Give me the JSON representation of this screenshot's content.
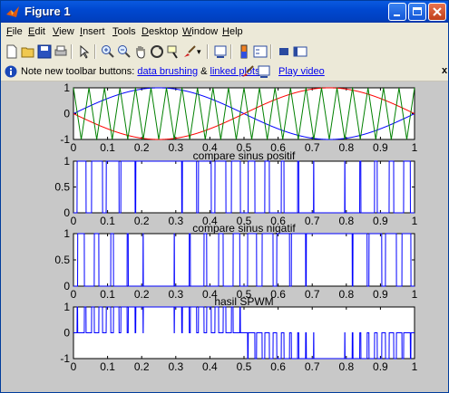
{
  "window": {
    "title": "Figure 1",
    "icon": "matlab-icon"
  },
  "menu": [
    "File",
    "Edit",
    "View",
    "Insert",
    "Tools",
    "Desktop",
    "Window",
    "Help"
  ],
  "toolbar_icons": [
    "new-figure-icon",
    "open-file-icon",
    "save-icon",
    "print-icon",
    "select-arrow-icon",
    "zoom-in-icon",
    "zoom-out-icon",
    "pan-hand-icon",
    "rotate-3d-icon",
    "data-cursor-icon",
    "brush-icon",
    "link-plot-icon",
    "colorbar-icon",
    "legend-icon",
    "hide-plot-tools-icon",
    "show-plot-tools-icon"
  ],
  "infobar": {
    "prefix": "Note new toolbar buttons: ",
    "link1": "data brushing",
    "mid": " & ",
    "link2": "linked plots",
    "video": "Play video",
    "close": "x"
  },
  "chart_data": [
    {
      "type": "line",
      "title": "",
      "xlim": [
        0,
        1
      ],
      "ylim": [
        -1,
        1
      ],
      "xticks": [
        "0",
        "0.1",
        "0.2",
        "0.3",
        "0.4",
        "0.5",
        "0.6",
        "0.7",
        "0.8",
        "0.9",
        "1"
      ],
      "yticks": [
        "-1",
        "0",
        "1"
      ],
      "series": [
        {
          "color": "#0000ff",
          "function": "sin(2*pi*x)"
        },
        {
          "color": "#ff0000",
          "function": "-sin(2*pi*x)"
        },
        {
          "color": "#008000",
          "function": "triangle carrier, 22 cycles over [0,1], amplitude 1"
        }
      ]
    },
    {
      "type": "line",
      "title": "compare sinus positif",
      "xlim": [
        0,
        1
      ],
      "ylim": [
        0,
        1
      ],
      "xticks": [
        "0",
        "0.1",
        "0.2",
        "0.3",
        "0.4",
        "0.5",
        "0.6",
        "0.7",
        "0.8",
        "0.9",
        "1"
      ],
      "yticks": [
        "0",
        "0.5",
        "1"
      ],
      "series": [
        {
          "color": "#0000ff",
          "function": "1 where sin(2*pi*x) > carrier(x), else 0"
        }
      ]
    },
    {
      "type": "line",
      "title": "compare sinus nigatif",
      "xlim": [
        0,
        1
      ],
      "ylim": [
        0,
        1
      ],
      "xticks": [
        "0",
        "0.1",
        "0.2",
        "0.3",
        "0.4",
        "0.5",
        "0.6",
        "0.7",
        "0.8",
        "0.9",
        "1"
      ],
      "yticks": [
        "0",
        "0.5",
        "1"
      ],
      "series": [
        {
          "color": "#0000ff",
          "function": "1 where -sin(2*pi*x) > carrier(x), else 0"
        }
      ]
    },
    {
      "type": "line",
      "title": "hasil SPWM",
      "xlim": [
        0,
        1
      ],
      "ylim": [
        -1,
        1
      ],
      "xticks": [
        "0",
        "0.1",
        "0.2",
        "0.3",
        "0.4",
        "0.5",
        "0.6",
        "0.7",
        "0.8",
        "0.9",
        "1"
      ],
      "yticks": [
        "-1",
        "0",
        "1"
      ],
      "series": [
        {
          "color": "#0000ff",
          "function": "compare positif - compare nigatif"
        }
      ]
    }
  ]
}
